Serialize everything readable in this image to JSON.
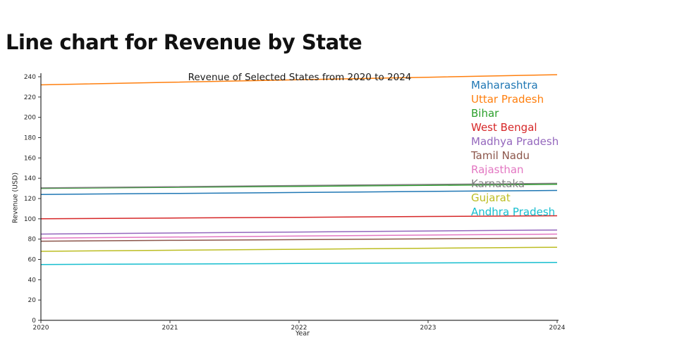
{
  "page": {
    "title": "Line chart for Revenue by State"
  },
  "chart": {
    "title": "Revenue of Selected States from 2020 to 2024",
    "xlabel": "Year",
    "ylabel": "Revenue (USD)"
  },
  "chart_data": {
    "type": "line",
    "title": "Revenue of Selected States from 2020 to 2024",
    "xlabel": "Year",
    "ylabel": "Revenue (USD)",
    "x": [
      2020,
      2021,
      2022,
      2023,
      2024
    ],
    "yticks": [
      0,
      20,
      40,
      60,
      80,
      100,
      120,
      140,
      160,
      180,
      200,
      220,
      240
    ],
    "ylim": [
      0,
      245
    ],
    "grid": false,
    "legend_position": "upper-right-inside-colored-text",
    "series": [
      {
        "name": "Maharashtra",
        "color": "#1f77b4",
        "values": [
          124,
          125,
          126,
          127,
          128
        ]
      },
      {
        "name": "Uttar Pradesh",
        "color": "#ff7f0e",
        "values": [
          232,
          234.5,
          237,
          239.5,
          242
        ]
      },
      {
        "name": "Bihar",
        "color": "#2ca02c",
        "values": [
          130,
          131,
          132,
          133,
          134
        ]
      },
      {
        "name": "West Bengal",
        "color": "#d62728",
        "values": [
          100,
          100.8,
          101.5,
          102.3,
          103
        ]
      },
      {
        "name": "Madhya Pradesh",
        "color": "#9467bd",
        "values": [
          85,
          86,
          87,
          88,
          89
        ]
      },
      {
        "name": "Tamil Nadu",
        "color": "#8c564b",
        "values": [
          78,
          78.8,
          79.5,
          80.3,
          81
        ]
      },
      {
        "name": "Rajasthan",
        "color": "#e377c2",
        "values": [
          81,
          82,
          83,
          84,
          85
        ]
      },
      {
        "name": "Karnataka",
        "color": "#7f7f7f",
        "values": [
          130.5,
          131.6,
          132.8,
          133.9,
          135
        ]
      },
      {
        "name": "Gujarat",
        "color": "#bcbd22",
        "values": [
          68,
          69,
          70,
          71,
          72
        ]
      },
      {
        "name": "Andhra Pradesh",
        "color": "#17becf",
        "values": [
          55,
          55.5,
          56,
          56.5,
          57
        ]
      }
    ]
  }
}
